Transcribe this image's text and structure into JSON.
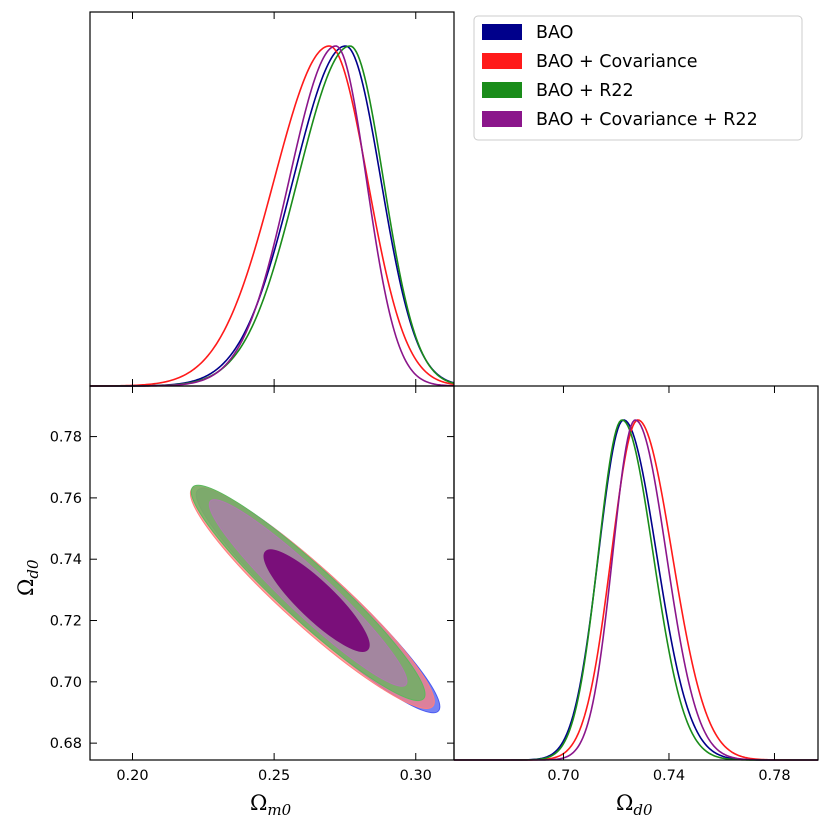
{
  "chart_data": {
    "type": "corner-plot",
    "parameters": [
      "Ω_m0",
      "Ω_d0"
    ],
    "legend": {
      "placement": "top-right",
      "entries": [
        {
          "label": "BAO",
          "color": "#00008b"
        },
        {
          "label": "BAO + Covariance",
          "color": "#ff1a1a"
        },
        {
          "label": "BAO + R22",
          "color": "#1a8c1a"
        },
        {
          "label": "BAO + Covariance + R22",
          "color": "#8b168b"
        }
      ]
    },
    "panels": {
      "omega_m0_marginal": {
        "type": "line",
        "xlim": [
          0.185,
          0.3135
        ],
        "series": [
          {
            "name": "BAO",
            "color": "#00008b",
            "mean": 0.2752,
            "sigma_left": 0.0185,
            "sigma_right": 0.0125
          },
          {
            "name": "BAO + Covariance",
            "color": "#ff1a1a",
            "mean": 0.2695,
            "sigma_left": 0.0195,
            "sigma_right": 0.0135
          },
          {
            "name": "BAO + R22",
            "color": "#1a8c1a",
            "mean": 0.2768,
            "sigma_left": 0.0185,
            "sigma_right": 0.0118
          },
          {
            "name": "BAO + Covariance + R22",
            "color": "#8b168b",
            "mean": 0.2718,
            "sigma_left": 0.0165,
            "sigma_right": 0.0108
          }
        ]
      },
      "omega_d0_marginal": {
        "type": "line",
        "xlim": [
          0.6585,
          0.7965
        ],
        "xticks": [
          "0.70",
          "0.74",
          "0.78"
        ],
        "xtick_values": [
          0.7,
          0.74,
          0.78
        ],
        "series": [
          {
            "name": "BAO",
            "color": "#00008b",
            "mean": 0.7228,
            "sigma_left": 0.0095,
            "sigma_right": 0.0125
          },
          {
            "name": "BAO + Covariance",
            "color": "#ff1a1a",
            "mean": 0.7282,
            "sigma_left": 0.01,
            "sigma_right": 0.013
          },
          {
            "name": "BAO + R22",
            "color": "#1a8c1a",
            "mean": 0.7222,
            "sigma_left": 0.009,
            "sigma_right": 0.0118
          },
          {
            "name": "BAO + Covariance + R22",
            "color": "#8b168b",
            "mean": 0.7272,
            "sigma_left": 0.0085,
            "sigma_right": 0.0118
          }
        ]
      },
      "joint": {
        "type": "contour",
        "xlim": [
          0.185,
          0.3135
        ],
        "ylim": [
          0.6745,
          0.7965
        ],
        "xticks": [
          "0.20",
          "0.25",
          "0.30"
        ],
        "xtick_values": [
          0.2,
          0.25,
          0.3
        ],
        "yticks": [
          "0.68",
          "0.70",
          "0.72",
          "0.74",
          "0.76",
          "0.78"
        ],
        "ytick_values": [
          0.68,
          0.7,
          0.72,
          0.74,
          0.76,
          0.78
        ],
        "contours": [
          {
            "name": "BAO",
            "color": "#4a5af0",
            "level": "2σ",
            "center": [
              0.2655,
              0.7265
            ],
            "end1": [
              0.2245,
              0.7615
            ],
            "end2": [
              0.3095,
              0.6895
            ],
            "half_width": 0.003
          },
          {
            "name": "BAO + Covariance",
            "color": "#ff7f7f",
            "level": "2σ",
            "center": [
              0.2635,
              0.7275
            ],
            "end1": [
              0.221,
              0.763
            ],
            "end2": [
              0.306,
              0.692
            ],
            "half_width": 0.0032
          },
          {
            "name": "BAO + R22",
            "color": "#5cb85c",
            "level": "2σ",
            "center": [
              0.262,
              0.729
            ],
            "end1": [
              0.2215,
              0.7635
            ],
            "end2": [
              0.303,
              0.6945
            ],
            "half_width": 0.003
          },
          {
            "name": "BAO + Covariance + R22",
            "color": "#b07ab0",
            "level": "2σ",
            "center": [
              0.262,
              0.729
            ],
            "end1": [
              0.2285,
              0.7585
            ],
            "end2": [
              0.2975,
              0.6985
            ],
            "half_width": 0.0024
          },
          {
            "name": "BAO + Covariance + R22",
            "color": "#7a0f7a",
            "level": "1σ",
            "center": [
              0.265,
              0.7265
            ],
            "end1": [
              0.2525,
              0.7425
            ],
            "end2": [
              0.2885,
              0.7105
            ],
            "half_width": 0.002
          }
        ]
      }
    },
    "xlabels": {
      "omega_m0": {
        "base": "Ω",
        "sub": "m0"
      },
      "omega_d0": {
        "base": "Ω",
        "sub": "d0"
      }
    },
    "ylabels": {
      "omega_d0": {
        "base": "Ω",
        "sub": "d0"
      }
    }
  }
}
